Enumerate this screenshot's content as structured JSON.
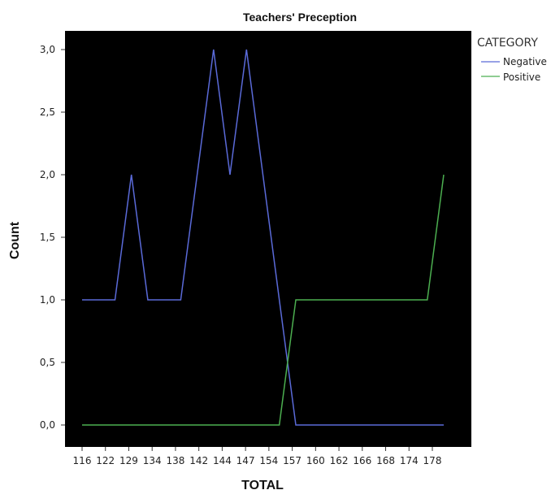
{
  "chart_data": {
    "type": "line",
    "title": "Teachers' Preception",
    "xlabel": "TOTAL",
    "ylabel": "Count",
    "ylim": [
      0,
      3
    ],
    "yticks": [
      "0,0",
      "0,5",
      "1,0",
      "1,5",
      "2,0",
      "2,5",
      "3,0"
    ],
    "ytick_values": [
      0,
      0.5,
      1,
      1.5,
      2,
      2.5,
      3
    ],
    "x": [
      "116",
      "122",
      "",
      "129",
      "",
      "134",
      "138",
      "",
      "142",
      "",
      "144",
      "",
      "147",
      "",
      "154",
      "157",
      "160",
      "162",
      "166",
      "168",
      "174",
      "178",
      ""
    ],
    "xticks_shown": [
      "116",
      "122",
      "129",
      "134",
      "138",
      "142",
      "144",
      "147",
      "154",
      "157",
      "160",
      "162",
      "166",
      "168",
      "174",
      "178"
    ],
    "legend_title": "CATEGORY",
    "legend_position": "right",
    "grid": false,
    "plot_background": "#000000",
    "series": [
      {
        "name": "Negative",
        "color": "#5a6ad8",
        "values": [
          1,
          1,
          1,
          2,
          1,
          1,
          1,
          2,
          3,
          2,
          3,
          2,
          1,
          0,
          0,
          0,
          0,
          0,
          0,
          0,
          0,
          0,
          0
        ]
      },
      {
        "name": "Positive",
        "color": "#4caf50",
        "values": [
          0,
          0,
          0,
          0,
          0,
          0,
          0,
          0,
          0,
          0,
          0,
          0,
          0,
          1,
          1,
          1,
          1,
          1,
          1,
          1,
          1,
          1,
          2
        ]
      }
    ]
  }
}
